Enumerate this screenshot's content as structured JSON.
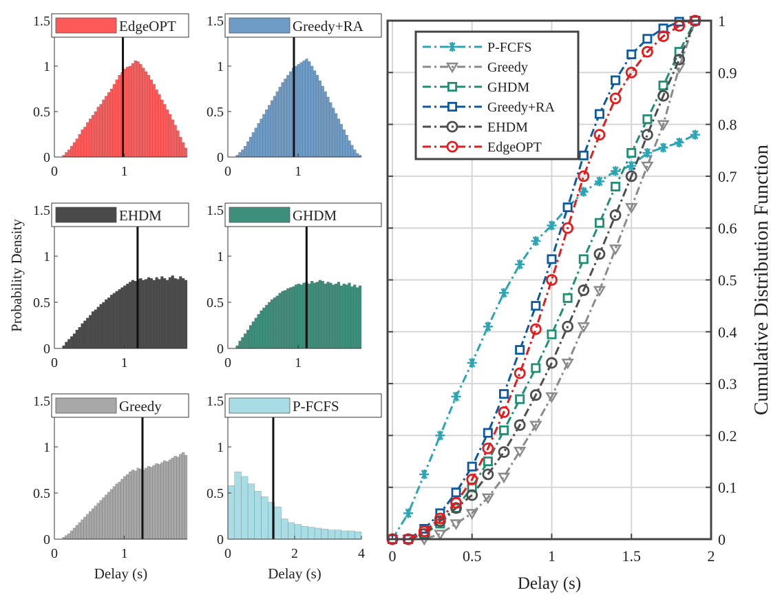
{
  "colors": {
    "EdgeOPT": "#e41a1c",
    "Greedy+RA": "#0b5aa0",
    "EHDM": "#4d4d4d",
    "GHDM": "#1f8f73",
    "Greedy": "#8a8a8a",
    "P-FCFS": "#2aa5b5",
    "hist_EdgeOPT": "#ff5a5a",
    "hist_Greedy+RA": "#6f9cc6",
    "hist_EHDM": "#4a4a4a",
    "hist_GHDM": "#3d8f7c",
    "hist_Greedy": "#a8a8a8",
    "hist_P-FCFS": "#a8dde5"
  },
  "chart_data": [
    {
      "type": "bar",
      "title": "",
      "legend": "EdgeOPT",
      "ylabel": "",
      "xlabel": "",
      "xlim": [
        0,
        1.9
      ],
      "ylim": [
        0,
        1.5
      ],
      "xticks": [
        0,
        1
      ],
      "yticks": [
        0,
        0.5,
        1,
        1.5
      ],
      "mean_line": 0.98,
      "bins": {
        "start": 0.0,
        "width": 0.038,
        "heights": [
          0,
          0,
          0,
          0.02,
          0.05,
          0.08,
          0.12,
          0.16,
          0.2,
          0.25,
          0.3,
          0.33,
          0.38,
          0.42,
          0.46,
          0.5,
          0.55,
          0.58,
          0.63,
          0.67,
          0.71,
          0.75,
          0.8,
          0.85,
          0.9,
          0.93,
          0.97,
          0.99,
          1.0,
          1.03,
          1.06,
          1.05,
          1.02,
          0.98,
          0.94,
          0.9,
          0.85,
          0.8,
          0.74,
          0.69,
          0.63,
          0.58,
          0.52,
          0.47,
          0.41,
          0.35,
          0.29,
          0.22,
          0.16,
          0.1
        ]
      }
    },
    {
      "type": "bar",
      "title": "",
      "legend": "Greedy+RA",
      "ylabel": "",
      "xlabel": "",
      "xlim": [
        0,
        1.9
      ],
      "ylim": [
        0,
        1.5
      ],
      "xticks": [
        0,
        1
      ],
      "yticks": [
        0,
        0.5,
        1,
        1.5
      ],
      "mean_line": 0.94,
      "bins": {
        "start": 0.0,
        "width": 0.038,
        "heights": [
          0,
          0,
          0,
          0.02,
          0.05,
          0.08,
          0.12,
          0.17,
          0.22,
          0.27,
          0.32,
          0.37,
          0.42,
          0.47,
          0.52,
          0.57,
          0.62,
          0.67,
          0.72,
          0.77,
          0.82,
          0.86,
          0.9,
          0.94,
          0.98,
          1.0,
          1.02,
          1.04,
          1.06,
          1.08,
          1.05,
          1.0,
          0.95,
          0.9,
          0.84,
          0.78,
          0.72,
          0.66,
          0.6,
          0.54,
          0.48,
          0.42,
          0.36,
          0.3,
          0.24,
          0.18,
          0.13,
          0.08,
          0.04,
          0.02
        ]
      }
    },
    {
      "type": "bar",
      "title": "",
      "legend": "EHDM",
      "ylabel": "",
      "xlabel": "",
      "xlim": [
        0,
        1.9
      ],
      "ylim": [
        0,
        1.5
      ],
      "xticks": [
        0,
        1
      ],
      "yticks": [
        0,
        0.5,
        1,
        1.5
      ],
      "mean_line": 1.19,
      "bins": {
        "start": 0.0,
        "width": 0.038,
        "heights": [
          0,
          0,
          0,
          0.03,
          0.07,
          0.1,
          0.13,
          0.16,
          0.2,
          0.23,
          0.27,
          0.3,
          0.33,
          0.36,
          0.4,
          0.42,
          0.45,
          0.48,
          0.5,
          0.53,
          0.55,
          0.58,
          0.6,
          0.62,
          0.64,
          0.66,
          0.68,
          0.7,
          0.72,
          0.74,
          0.73,
          0.75,
          0.76,
          0.74,
          0.75,
          0.77,
          0.76,
          0.74,
          0.77,
          0.75,
          0.78,
          0.76,
          0.74,
          0.77,
          0.79,
          0.76,
          0.75,
          0.78,
          0.76,
          0.74
        ]
      }
    },
    {
      "type": "bar",
      "title": "",
      "legend": "GHDM",
      "ylabel": "",
      "xlabel": "",
      "xlim": [
        0,
        1.9
      ],
      "ylim": [
        0,
        1.5
      ],
      "xticks": [
        0,
        1
      ],
      "yticks": [
        0,
        0.5,
        1,
        1.5
      ],
      "mean_line": 1.12,
      "bins": {
        "start": 0.0,
        "width": 0.038,
        "heights": [
          0,
          0,
          0,
          0.03,
          0.08,
          0.12,
          0.16,
          0.2,
          0.25,
          0.29,
          0.33,
          0.37,
          0.41,
          0.44,
          0.47,
          0.5,
          0.53,
          0.55,
          0.57,
          0.6,
          0.62,
          0.63,
          0.65,
          0.66,
          0.67,
          0.69,
          0.7,
          0.69,
          0.71,
          0.72,
          0.7,
          0.73,
          0.71,
          0.72,
          0.74,
          0.73,
          0.7,
          0.72,
          0.71,
          0.69,
          0.7,
          0.72,
          0.68,
          0.7,
          0.69,
          0.71,
          0.67,
          0.69,
          0.66,
          0.68
        ]
      }
    },
    {
      "type": "bar",
      "title": "",
      "legend": "Greedy",
      "ylabel": "",
      "xlabel": "Delay (s)",
      "xlim": [
        0,
        1.9
      ],
      "ylim": [
        0,
        1.5
      ],
      "xticks": [
        0,
        1
      ],
      "yticks": [
        0,
        0.5,
        1,
        1.5
      ],
      "mean_line": 1.26,
      "bins": {
        "start": 0.0,
        "width": 0.038,
        "heights": [
          0,
          0,
          0,
          0.02,
          0.04,
          0.06,
          0.09,
          0.12,
          0.15,
          0.18,
          0.21,
          0.24,
          0.27,
          0.3,
          0.33,
          0.36,
          0.39,
          0.42,
          0.45,
          0.48,
          0.51,
          0.54,
          0.57,
          0.6,
          0.62,
          0.65,
          0.68,
          0.7,
          0.73,
          0.75,
          0.74,
          0.77,
          0.76,
          0.75,
          0.77,
          0.79,
          0.78,
          0.8,
          0.82,
          0.81,
          0.83,
          0.85,
          0.84,
          0.86,
          0.88,
          0.9,
          0.89,
          0.92,
          0.94,
          0.91
        ]
      }
    },
    {
      "type": "bar",
      "title": "",
      "legend": "P-FCFS",
      "ylabel": "",
      "xlabel": "Delay (s)",
      "xlim": [
        0,
        4
      ],
      "ylim": [
        0,
        1.5
      ],
      "xticks": [
        0,
        2,
        4
      ],
      "yticks": [
        0,
        0.5,
        1,
        1.5
      ],
      "mean_line": 1.36,
      "bins": {
        "start": 0.0,
        "width": 0.2,
        "heights": [
          0.58,
          0.73,
          0.68,
          0.6,
          0.52,
          0.46,
          0.4,
          0.35,
          0.22,
          0.18,
          0.16,
          0.14,
          0.13,
          0.12,
          0.11,
          0.1,
          0.1,
          0.09,
          0.09,
          0.08
        ]
      }
    },
    {
      "type": "line",
      "title": "",
      "xlabel": "Delay (s)",
      "ylabel": "Cumulative Distribution Function",
      "xlim": [
        -0.03,
        2
      ],
      "ylim": [
        0,
        1
      ],
      "xticks": [
        0,
        0.5,
        1,
        1.5,
        2
      ],
      "yticks": [
        0,
        0.1,
        0.2,
        0.3,
        0.4,
        0.5,
        0.6,
        0.7,
        0.8,
        0.9,
        1
      ],
      "grid": true,
      "legend_position": "top-left",
      "series": [
        {
          "name": "P-FCFS",
          "x": [
            0,
            0.1,
            0.2,
            0.3,
            0.4,
            0.5,
            0.6,
            0.7,
            0.8,
            0.9,
            1.0,
            1.1,
            1.2,
            1.3,
            1.4,
            1.5,
            1.6,
            1.7,
            1.8,
            1.9
          ],
          "y": [
            0.0,
            0.05,
            0.125,
            0.2,
            0.275,
            0.34,
            0.41,
            0.475,
            0.53,
            0.575,
            0.605,
            0.64,
            0.67,
            0.69,
            0.71,
            0.72,
            0.745,
            0.755,
            0.765,
            0.78
          ]
        },
        {
          "name": "Greedy",
          "x": [
            0,
            0.1,
            0.2,
            0.3,
            0.4,
            0.5,
            0.6,
            0.7,
            0.8,
            0.9,
            1.0,
            1.1,
            1.2,
            1.3,
            1.4,
            1.5,
            1.6,
            1.7,
            1.8,
            1.9
          ],
          "y": [
            0.0,
            0.0,
            0.0,
            0.01,
            0.03,
            0.05,
            0.08,
            0.12,
            0.17,
            0.22,
            0.275,
            0.34,
            0.41,
            0.48,
            0.56,
            0.64,
            0.72,
            0.8,
            0.91,
            1.0
          ]
        },
        {
          "name": "GHDM",
          "x": [
            0,
            0.1,
            0.2,
            0.3,
            0.4,
            0.5,
            0.6,
            0.7,
            0.8,
            0.9,
            1.0,
            1.1,
            1.2,
            1.3,
            1.4,
            1.5,
            1.6,
            1.7,
            1.8,
            1.9
          ],
          "y": [
            0.0,
            0.0,
            0.01,
            0.03,
            0.06,
            0.1,
            0.15,
            0.21,
            0.27,
            0.33,
            0.395,
            0.465,
            0.54,
            0.61,
            0.68,
            0.745,
            0.81,
            0.875,
            0.94,
            1.0
          ]
        },
        {
          "name": "Greedy+RA",
          "x": [
            0,
            0.1,
            0.2,
            0.3,
            0.4,
            0.5,
            0.6,
            0.7,
            0.8,
            0.9,
            1.0,
            1.1,
            1.2,
            1.3,
            1.4,
            1.5,
            1.6,
            1.7,
            1.8,
            1.9
          ],
          "y": [
            0.0,
            0.0,
            0.02,
            0.05,
            0.09,
            0.14,
            0.205,
            0.28,
            0.365,
            0.45,
            0.54,
            0.64,
            0.74,
            0.82,
            0.885,
            0.935,
            0.965,
            0.985,
            0.998,
            1.0
          ]
        },
        {
          "name": "EHDM",
          "x": [
            0,
            0.1,
            0.2,
            0.3,
            0.4,
            0.5,
            0.6,
            0.7,
            0.8,
            0.9,
            1.0,
            1.1,
            1.2,
            1.3,
            1.4,
            1.5,
            1.6,
            1.7,
            1.8,
            1.9
          ],
          "y": [
            0.0,
            0.0,
            0.01,
            0.035,
            0.06,
            0.085,
            0.125,
            0.168,
            0.22,
            0.278,
            0.34,
            0.41,
            0.48,
            0.55,
            0.625,
            0.7,
            0.78,
            0.855,
            0.925,
            1.0
          ]
        },
        {
          "name": "EdgeOPT",
          "x": [
            0,
            0.1,
            0.2,
            0.3,
            0.4,
            0.5,
            0.6,
            0.7,
            0.8,
            0.9,
            1.0,
            1.1,
            1.2,
            1.3,
            1.4,
            1.5,
            1.6,
            1.7,
            1.8,
            1.9
          ],
          "y": [
            0.0,
            0.0,
            0.015,
            0.04,
            0.07,
            0.115,
            0.175,
            0.245,
            0.32,
            0.405,
            0.5,
            0.6,
            0.7,
            0.78,
            0.85,
            0.9,
            0.94,
            0.97,
            0.99,
            1.0
          ]
        }
      ]
    }
  ],
  "shared": {
    "hist_ylabel": "Probability Density",
    "hist_xlabel": "Delay (s)"
  }
}
